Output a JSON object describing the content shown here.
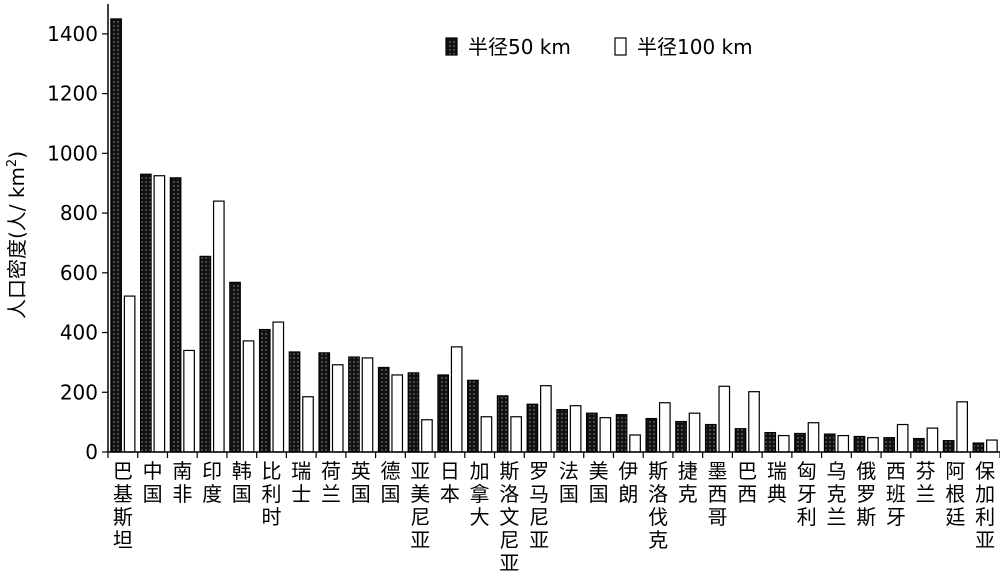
{
  "chart_data": {
    "type": "bar",
    "ylabel": "人口密度(人/km²)",
    "ylabel_main": "人口密度(人/ km",
    "ylabel_sup": "2",
    "ylabel_end": ")",
    "ylim": [
      0,
      1500
    ],
    "yticks": [
      "0",
      "200",
      "400",
      "600",
      "800",
      "1000",
      "1200",
      "1400"
    ],
    "ytick_values": [
      0,
      200,
      400,
      600,
      800,
      1000,
      1200,
      1400
    ],
    "legend_position": "top-right",
    "categories": [
      "巴基斯坦",
      "中国",
      "南非",
      "印度",
      "韩国",
      "比利时",
      "瑞士",
      "荷兰",
      "英国",
      "德国",
      "亚美尼亚",
      "日本",
      "加拿大",
      "斯洛文尼亚",
      "罗马尼亚",
      "法国",
      "美国",
      "伊朗",
      "斯洛伐克",
      "捷克",
      "墨西哥",
      "巴西",
      "瑞典",
      "匈牙利",
      "乌克兰",
      "俄罗斯",
      "西班牙",
      "芬兰",
      "阿根廷",
      "保加利亚"
    ],
    "series": [
      {
        "name": "半径50 km",
        "fill": "#1a1a1a",
        "pattern": "dotted",
        "values": [
          1450,
          930,
          918,
          655,
          568,
          410,
          335,
          332,
          318,
          283,
          265,
          258,
          240,
          188,
          160,
          142,
          130,
          125,
          112,
          102,
          92,
          78,
          65,
          62,
          60,
          52,
          48,
          45,
          38,
          30
        ]
      },
      {
        "name": "半径100 km",
        "fill": "#ffffff",
        "pattern": "solid",
        "values": [
          522,
          925,
          340,
          840,
          372,
          435,
          185,
          292,
          315,
          258,
          108,
          352,
          118,
          118,
          222,
          155,
          115,
          57,
          165,
          130,
          220,
          202,
          55,
          98,
          55,
          48,
          92,
          80,
          168,
          40
        ]
      }
    ]
  }
}
